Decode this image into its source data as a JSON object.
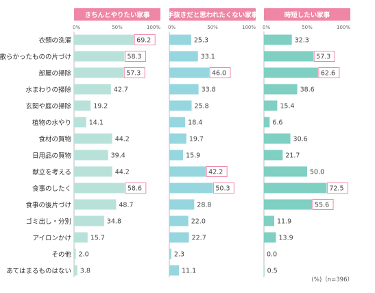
{
  "chart_data": {
    "type": "bar",
    "orientation": "horizontal",
    "categories": [
      "衣類の洗濯",
      "散らかったものの片づけ",
      "部屋の掃除",
      "水まわりの掃除",
      "玄関や庭の掃除",
      "植物の水やり",
      "食材の買物",
      "日用品の買物",
      "献立を考える",
      "食事のしたく",
      "食事の後片づけ",
      "ゴミ出し・分別",
      "アイロンかけ",
      "その他",
      "あてはまるものはない"
    ],
    "panels": [
      {
        "title": "きちんとやりたい家事",
        "values": [
          69.2,
          58.3,
          57.3,
          42.7,
          19.2,
          14.1,
          44.2,
          39.4,
          44.2,
          58.6,
          48.7,
          34.8,
          15.7,
          2.0,
          3.8
        ],
        "labels": [
          "69.2",
          "58.3",
          "57.3",
          "42.7",
          "19.2",
          "14.1",
          "44.2",
          "39.4",
          "44.2",
          "58.6",
          "48.7",
          "34.8",
          "15.7",
          "2.0",
          "3.8"
        ],
        "highlighted": [
          0,
          1,
          2,
          9
        ],
        "bar_color": "#b8e2d9",
        "title_color": "#ef86a5",
        "ticks": [
          "0%",
          "50%",
          "100%"
        ]
      },
      {
        "title": "手抜きだと思われたくない家事",
        "values": [
          25.3,
          33.1,
          46.0,
          33.8,
          25.8,
          18.4,
          19.7,
          15.9,
          42.2,
          50.3,
          28.8,
          22.0,
          22.7,
          2.3,
          11.1
        ],
        "labels": [
          "25.3",
          "33.1",
          "46.0",
          "33.8",
          "25.8",
          "18.4",
          "19.7",
          "15.9",
          "42.2",
          "50.3",
          "28.8",
          "22.0",
          "22.7",
          "2.3",
          "11.1"
        ],
        "highlighted": [
          2,
          8,
          9
        ],
        "bar_color": "#96d6df",
        "title_color": "#ef86a5",
        "ticks": [
          "0%",
          "50%",
          "100%"
        ]
      },
      {
        "title": "時短したい家事",
        "values": [
          32.3,
          57.3,
          62.6,
          38.6,
          15.4,
          6.6,
          30.6,
          21.7,
          50.0,
          72.5,
          55.6,
          11.9,
          13.9,
          0.0,
          0.5
        ],
        "labels": [
          "32.3",
          "57.3",
          "62.6",
          "38.6",
          "15.4",
          "6.6",
          "30.6",
          "21.7",
          "50.0",
          "72.5",
          "55.6",
          "11.9",
          "13.9",
          "0.0",
          "0.5"
        ],
        "highlighted": [
          1,
          2,
          9,
          10
        ],
        "bar_color": "#7fcfc3",
        "title_color": "#ef86a5",
        "ticks": [
          "0%",
          "50%",
          "100%"
        ]
      }
    ],
    "xlim": [
      0,
      100
    ],
    "highlight_color": "#ef86a5",
    "note": "(%)（n=396）"
  }
}
